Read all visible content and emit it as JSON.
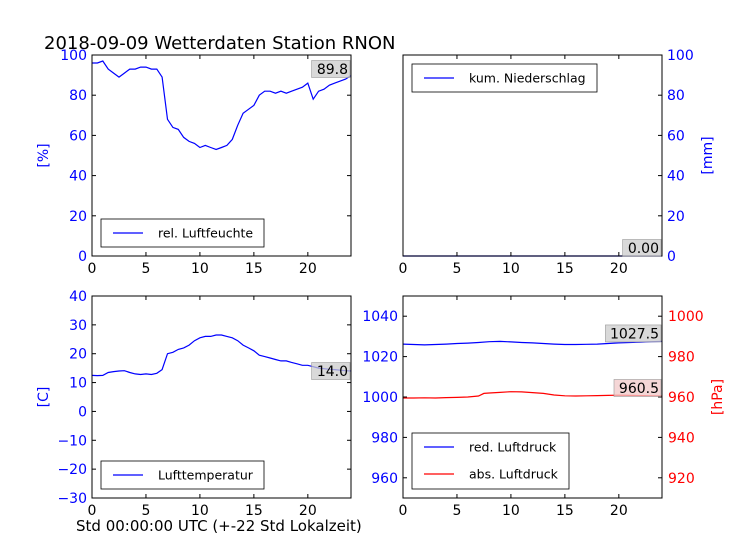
{
  "figure": {
    "title": "2018-09-09 Wetterdaten Station RNON",
    "xlabel": "Std 00:00:00 UTC (+-22 Std Lokalzeit)"
  },
  "colors": {
    "blue": "#0000ff",
    "red": "#ff0000",
    "axis": "#000000",
    "latest_bg": "#cccccc",
    "latest_bg_red": "#f2c8c8"
  },
  "chart_data": [
    {
      "id": "humidity",
      "type": "line",
      "xlim": [
        0,
        24
      ],
      "ylim": [
        0,
        100
      ],
      "xticks": [
        0,
        5,
        10,
        15,
        20
      ],
      "yticks": [
        0,
        20,
        40,
        60,
        80,
        100
      ],
      "ylabel": "[%]",
      "ylabel_color": "#0000ff",
      "tick_color": "#0000ff",
      "latest_value": "89.8",
      "legend": "bottom-left",
      "series": [
        {
          "name": "rel. Luftfeuchte",
          "color": "#0000ff",
          "x": [
            0,
            0.5,
            1,
            1.5,
            2,
            2.5,
            3,
            3.5,
            4,
            4.5,
            5,
            5.5,
            6,
            6.5,
            7,
            7.5,
            8,
            8.5,
            9,
            9.5,
            10,
            10.5,
            11,
            11.5,
            12,
            12.5,
            13,
            13.5,
            14,
            14.5,
            15,
            15.5,
            16,
            16.5,
            17,
            17.5,
            18,
            18.5,
            19,
            19.5,
            20,
            20.5,
            21,
            21.5,
            22,
            22.5,
            23,
            23.5,
            24
          ],
          "y": [
            96,
            96,
            97,
            93,
            91,
            89,
            91,
            93,
            93,
            94,
            94,
            93,
            93,
            89,
            68,
            64,
            63,
            59,
            57,
            56,
            54,
            55,
            54,
            53,
            54,
            55,
            58,
            65,
            71,
            73,
            75,
            80,
            82,
            82,
            81,
            82,
            81,
            82,
            83,
            84,
            86,
            78,
            82,
            83,
            85,
            86,
            87,
            88,
            89.8
          ]
        }
      ]
    },
    {
      "id": "precipitation",
      "type": "line",
      "xlim": [
        0,
        24
      ],
      "ylim": [
        0,
        100
      ],
      "xticks": [
        0,
        5,
        10,
        15,
        20
      ],
      "yticks": [
        0,
        20,
        40,
        60,
        80,
        100
      ],
      "y_axis_side": "right",
      "ylabel": "[mm]",
      "ylabel_color": "#0000ff",
      "tick_color": "#0000ff",
      "latest_value": "0.00",
      "legend": "top-left",
      "series": [
        {
          "name": "kum. Niederschlag",
          "color": "#0000ff",
          "x": [
            0,
            24
          ],
          "y": [
            0,
            0
          ]
        }
      ]
    },
    {
      "id": "temperature",
      "type": "line",
      "xlim": [
        0,
        24
      ],
      "ylim": [
        -30,
        40
      ],
      "xticks": [
        0,
        5,
        10,
        15,
        20
      ],
      "yticks": [
        -30,
        -20,
        -10,
        0,
        10,
        20,
        30,
        40
      ],
      "ylabel": "[C]",
      "ylabel_color": "#0000ff",
      "tick_color": "#0000ff",
      "latest_value": "14.0",
      "legend": "bottom-left",
      "series": [
        {
          "name": "Lufttemperatur",
          "color": "#0000ff",
          "x": [
            0,
            0.5,
            1,
            1.5,
            2,
            2.5,
            3,
            3.5,
            4,
            4.5,
            5,
            5.5,
            6,
            6.5,
            7,
            7.5,
            8,
            8.5,
            9,
            9.5,
            10,
            10.5,
            11,
            11.5,
            12,
            12.5,
            13,
            13.5,
            14,
            14.5,
            15,
            15.5,
            16,
            16.5,
            17,
            17.5,
            18,
            18.5,
            19,
            19.5,
            20,
            20.5,
            21,
            21.5,
            22,
            22.5,
            23,
            23.5,
            24
          ],
          "y": [
            12.5,
            12.4,
            12.5,
            13.5,
            13.8,
            14,
            14.1,
            13.5,
            13,
            12.8,
            13,
            12.8,
            13.2,
            14.5,
            20,
            20.5,
            21.5,
            22,
            23,
            24.5,
            25.5,
            26,
            26,
            26.5,
            26.5,
            26,
            25.5,
            24.5,
            23,
            22,
            21,
            19.5,
            19,
            18.5,
            18,
            17.5,
            17.5,
            17,
            16.5,
            16,
            16,
            15.5,
            15,
            14.8,
            14.6,
            14.5,
            14.3,
            14.1,
            14.0
          ]
        }
      ]
    },
    {
      "id": "pressure",
      "type": "line",
      "xlim": [
        0,
        24
      ],
      "ylim": [
        950,
        1050
      ],
      "xticks": [
        0,
        5,
        10,
        15,
        20
      ],
      "yticks": [
        960,
        980,
        1000,
        1020,
        1040
      ],
      "tick_color": "#0000ff",
      "y2lim": [
        910,
        1010
      ],
      "y2ticks": [
        920,
        940,
        960,
        980,
        1000
      ],
      "y2label": "[hPa]",
      "y2label_color": "#ff0000",
      "y2_tick_color": "#ff0000",
      "latest_values": [
        "1027.5",
        "960.5"
      ],
      "legend": "bottom-left",
      "series": [
        {
          "name": "red. Luftdruck",
          "axis": "left",
          "color": "#0000ff",
          "x": [
            0,
            1,
            2,
            3,
            4,
            5,
            6,
            7,
            8,
            9,
            10,
            11,
            12,
            13,
            14,
            15,
            16,
            17,
            18,
            19,
            20,
            21,
            22,
            23,
            24
          ],
          "y": [
            1026.2,
            1026,
            1025.8,
            1026,
            1026.2,
            1026.5,
            1026.7,
            1027,
            1027.4,
            1027.5,
            1027.3,
            1027,
            1026.8,
            1026.5,
            1026.2,
            1026,
            1026,
            1026.1,
            1026.2,
            1026.5,
            1026.8,
            1027,
            1027.2,
            1027.4,
            1027.5
          ]
        },
        {
          "name": "abs. Luftdruck",
          "axis": "right",
          "color": "#ff0000",
          "x": [
            0,
            1,
            2,
            3,
            4,
            5,
            6,
            7,
            7.5,
            8,
            9,
            10,
            11,
            12,
            13,
            14,
            15,
            16,
            17,
            18,
            19,
            20,
            21,
            22,
            23,
            24
          ],
          "y": [
            959.5,
            959.5,
            959.6,
            959.5,
            959.7,
            959.8,
            960,
            960.5,
            961.8,
            962,
            962.3,
            962.6,
            962.5,
            962.2,
            961.8,
            961,
            960.6,
            960.5,
            960.6,
            960.7,
            960.8,
            960.9,
            960.8,
            960.7,
            960.6,
            960.5
          ]
        }
      ]
    }
  ]
}
